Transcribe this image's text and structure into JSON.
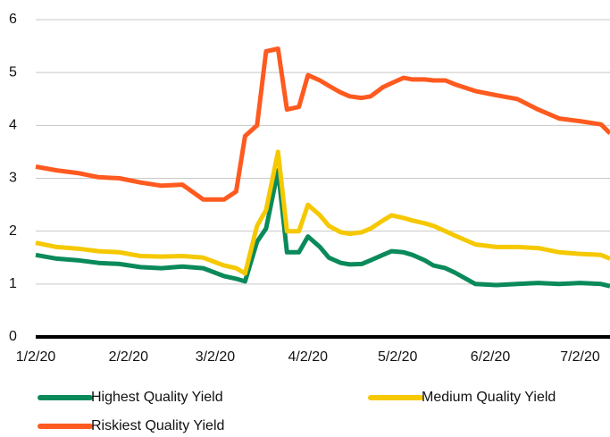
{
  "chart_data": {
    "type": "line",
    "x": [
      "1/2/20",
      "1/9/20",
      "1/16/20",
      "1/23/20",
      "1/30/20",
      "2/6/20",
      "2/13/20",
      "2/20/20",
      "2/27/20",
      "3/5/20",
      "3/9/20",
      "3/12/20",
      "3/16/20",
      "3/19/20",
      "3/23/20",
      "3/26/20",
      "3/30/20",
      "4/2/20",
      "4/6/20",
      "4/9/20",
      "4/13/20",
      "4/16/20",
      "4/20/20",
      "4/23/20",
      "4/27/20",
      "4/30/20",
      "5/4/20",
      "5/7/20",
      "5/11/20",
      "5/14/20",
      "5/18/20",
      "5/21/20",
      "5/28/20",
      "6/4/20",
      "6/11/20",
      "6/18/20",
      "6/25/20",
      "7/2/20",
      "7/9/20",
      "7/12/20"
    ],
    "series": [
      {
        "name": "Highest Quality Yield",
        "color": "#0a8a5a",
        "values": [
          1.55,
          1.48,
          1.45,
          1.4,
          1.38,
          1.32,
          1.3,
          1.33,
          1.3,
          1.15,
          1.1,
          1.05,
          1.8,
          2.05,
          3.15,
          1.6,
          1.6,
          1.9,
          1.7,
          1.5,
          1.4,
          1.37,
          1.38,
          1.45,
          1.55,
          1.62,
          1.6,
          1.55,
          1.45,
          1.35,
          1.3,
          1.22,
          1.0,
          0.98,
          1.0,
          1.02,
          1.0,
          1.02,
          1.0,
          0.96
        ]
      },
      {
        "name": "Medium Quality Yield",
        "color": "#f5c800",
        "values": [
          1.78,
          1.7,
          1.67,
          1.62,
          1.6,
          1.53,
          1.52,
          1.53,
          1.5,
          1.35,
          1.3,
          1.2,
          2.1,
          2.4,
          3.5,
          2.0,
          2.0,
          2.5,
          2.3,
          2.1,
          1.98,
          1.95,
          1.98,
          2.05,
          2.2,
          2.3,
          2.25,
          2.2,
          2.15,
          2.1,
          2.0,
          1.92,
          1.75,
          1.7,
          1.7,
          1.68,
          1.6,
          1.57,
          1.55,
          1.48
        ]
      },
      {
        "name": "Riskiest Quality Yield",
        "color": "#ff5a1f",
        "values": [
          3.22,
          3.15,
          3.1,
          3.02,
          3.0,
          2.92,
          2.86,
          2.88,
          2.6,
          2.6,
          2.75,
          3.8,
          4.0,
          5.4,
          5.45,
          4.3,
          4.35,
          4.95,
          4.85,
          4.75,
          4.62,
          4.55,
          4.52,
          4.55,
          4.72,
          4.8,
          4.9,
          4.87,
          4.87,
          4.85,
          4.85,
          4.78,
          4.65,
          4.57,
          4.5,
          4.3,
          4.13,
          4.08,
          4.02,
          3.85
        ]
      }
    ],
    "xlim": [
      "1/2/20",
      "7/12/20"
    ],
    "xticks": [
      "1/2/20",
      "2/2/20",
      "3/2/20",
      "4/2/20",
      "5/2/20",
      "6/2/20",
      "7/2/20"
    ],
    "ylim": [
      0,
      6
    ],
    "yticks": [
      0,
      1,
      2,
      3,
      4,
      5,
      6
    ],
    "grid": true
  }
}
